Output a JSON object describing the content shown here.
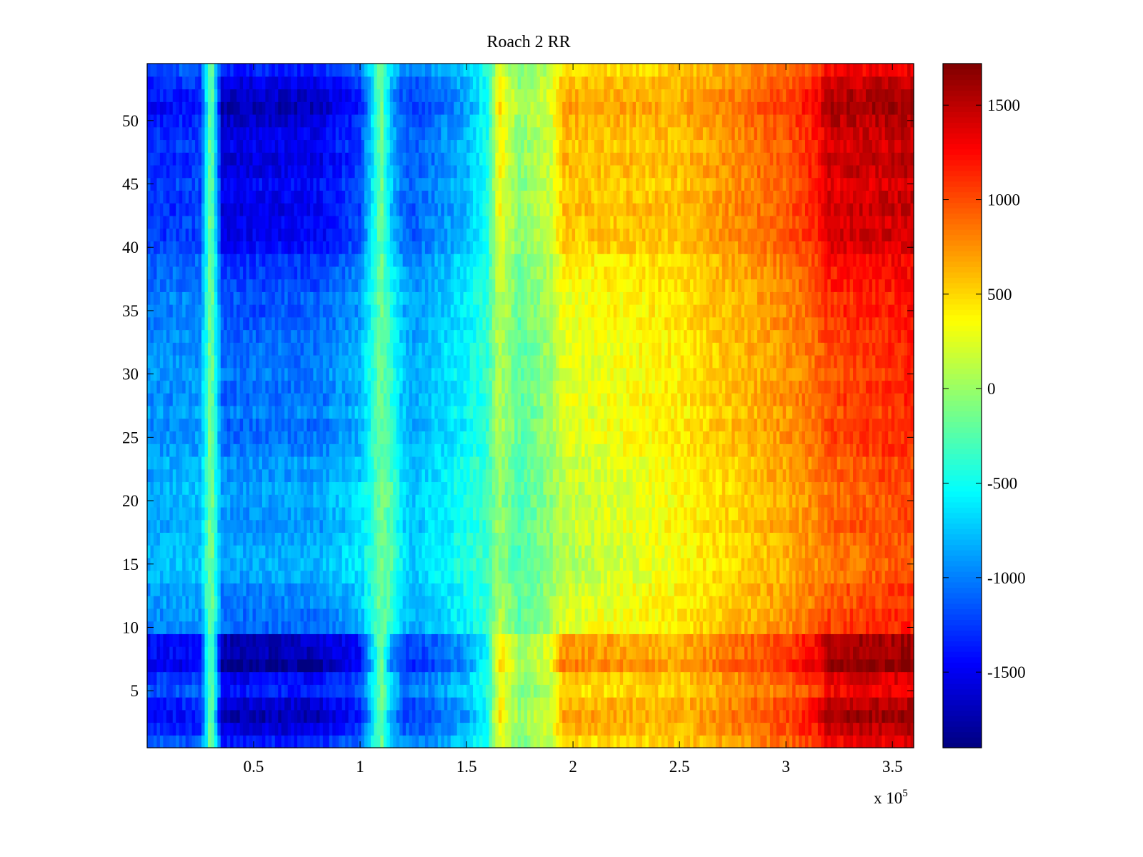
{
  "chart_data": {
    "type": "heatmap",
    "title": "Roach 2 RR",
    "xlabel": "",
    "ylabel": "",
    "x_multiplier_label": "x 10",
    "x_multiplier_exponent": "5",
    "xlim": [
      0,
      360000
    ],
    "ylim": [
      0.5,
      54.5
    ],
    "rows": 54,
    "x_ticks": [
      {
        "value": 50000,
        "label": "0.5"
      },
      {
        "value": 100000,
        "label": "1"
      },
      {
        "value": 150000,
        "label": "1.5"
      },
      {
        "value": 200000,
        "label": "2"
      },
      {
        "value": 250000,
        "label": "2.5"
      },
      {
        "value": 300000,
        "label": "3"
      },
      {
        "value": 350000,
        "label": "3.5"
      }
    ],
    "y_ticks": [
      {
        "value": 5,
        "label": "5"
      },
      {
        "value": 10,
        "label": "10"
      },
      {
        "value": 15,
        "label": "15"
      },
      {
        "value": 20,
        "label": "20"
      },
      {
        "value": 25,
        "label": "25"
      },
      {
        "value": 30,
        "label": "30"
      },
      {
        "value": 35,
        "label": "35"
      },
      {
        "value": 40,
        "label": "40"
      },
      {
        "value": 45,
        "label": "45"
      },
      {
        "value": 50,
        "label": "50"
      }
    ],
    "colormap": "jet",
    "clim": [
      -1900,
      1720
    ],
    "colorbar_ticks": [
      {
        "value": 1500,
        "label": "1500"
      },
      {
        "value": 1000,
        "label": "1000"
      },
      {
        "value": 500,
        "label": "500"
      },
      {
        "value": 0,
        "label": "0"
      },
      {
        "value": -500,
        "label": "-500"
      },
      {
        "value": -1000,
        "label": "-1000"
      },
      {
        "value": -1500,
        "label": "-1500"
      }
    ],
    "column_profile": {
      "x": [
        0,
        25000,
        30000,
        35000,
        80000,
        100000,
        110000,
        115000,
        120000,
        125000,
        150000,
        160000,
        165000,
        175000,
        190000,
        195000,
        250000,
        300000,
        315000,
        320000,
        350000,
        360000
      ],
      "base": [
        -900,
        -850,
        -50,
        -1000,
        -950,
        -750,
        -150,
        -350,
        -700,
        -800,
        -500,
        -350,
        50,
        -250,
        0,
        180,
        400,
        700,
        850,
        950,
        1050,
        1080
      ],
      "outer_row_depth": [
        -550,
        -550,
        0,
        -750,
        -750,
        -650,
        0,
        -600,
        -500,
        -450,
        -400,
        -150,
        450,
        250,
        250,
        550,
        250,
        350,
        450,
        650,
        550,
        550
      ]
    },
    "row_weights": [
      {
        "row": 1,
        "weight": 0.5
      },
      {
        "row": 2,
        "weight": 0.8
      },
      {
        "row": 3,
        "weight": 1.0
      },
      {
        "row": 4,
        "weight": 0.85
      },
      {
        "row": 5,
        "weight": 0.5
      },
      {
        "row": 6,
        "weight": 0.65
      },
      {
        "row": 7,
        "weight": 1.15
      },
      {
        "row": 8,
        "weight": 1.0
      },
      {
        "row": 9,
        "weight": 0.95
      },
      {
        "row": 10,
        "weight": 0.15
      },
      {
        "row": 11,
        "weight": 0.1
      },
      {
        "row": 12,
        "weight": 0.0
      },
      {
        "row": 13,
        "weight": 0.0
      },
      {
        "row": 14,
        "weight": -0.15
      },
      {
        "row": 15,
        "weight": -0.2
      },
      {
        "row": 16,
        "weight": -0.2
      },
      {
        "row": 17,
        "weight": -0.15
      },
      {
        "row": 18,
        "weight": -0.05
      },
      {
        "row": 19,
        "weight": -0.1
      },
      {
        "row": 20,
        "weight": -0.15
      },
      {
        "row": 21,
        "weight": -0.15
      },
      {
        "row": 22,
        "weight": -0.05
      },
      {
        "row": 23,
        "weight": -0.1
      },
      {
        "row": 24,
        "weight": 0.05
      },
      {
        "row": 25,
        "weight": 0.1
      },
      {
        "row": 26,
        "weight": 0.15
      },
      {
        "row": 27,
        "weight": 0.0
      },
      {
        "row": 28,
        "weight": 0.15
      },
      {
        "row": 29,
        "weight": 0.1
      },
      {
        "row": 30,
        "weight": 0.05
      },
      {
        "row": 31,
        "weight": 0.1
      },
      {
        "row": 32,
        "weight": 0.1
      },
      {
        "row": 33,
        "weight": 0.15
      },
      {
        "row": 34,
        "weight": 0.2
      },
      {
        "row": 35,
        "weight": 0.25
      },
      {
        "row": 36,
        "weight": 0.2
      },
      {
        "row": 37,
        "weight": 0.3
      },
      {
        "row": 38,
        "weight": 0.35
      },
      {
        "row": 39,
        "weight": 0.4
      },
      {
        "row": 40,
        "weight": 0.6
      },
      {
        "row": 41,
        "weight": 0.7
      },
      {
        "row": 42,
        "weight": 0.65
      },
      {
        "row": 43,
        "weight": 0.75
      },
      {
        "row": 44,
        "weight": 0.7
      },
      {
        "row": 45,
        "weight": 0.6
      },
      {
        "row": 46,
        "weight": 0.75
      },
      {
        "row": 47,
        "weight": 0.8
      },
      {
        "row": 48,
        "weight": 0.7
      },
      {
        "row": 49,
        "weight": 0.75
      },
      {
        "row": 50,
        "weight": 0.85
      },
      {
        "row": 51,
        "weight": 1.0
      },
      {
        "row": 52,
        "weight": 0.9
      },
      {
        "row": 53,
        "weight": 0.75
      },
      {
        "row": 54,
        "weight": 0.5
      }
    ]
  }
}
